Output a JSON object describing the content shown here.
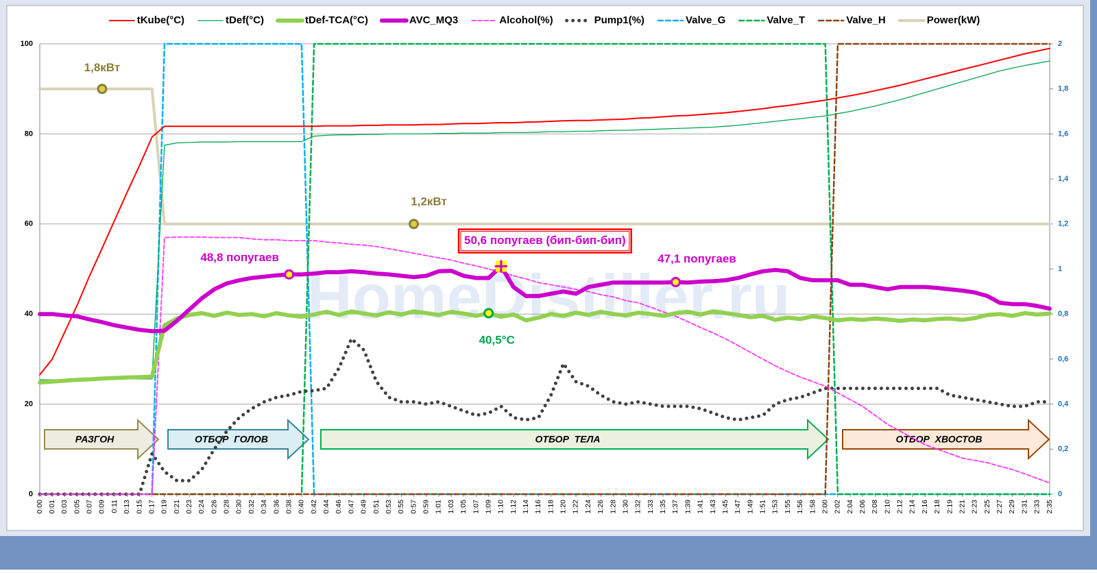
{
  "chart_data": {
    "type": "line",
    "watermark": "HomeDistiller.ru",
    "categories": [
      "0:00",
      "0:01",
      "0:03",
      "0:05",
      "0:07",
      "0:09",
      "0:11",
      "0:13",
      "0:15",
      "0:17",
      "0:19",
      "0:21",
      "0:23",
      "0:24",
      "0:26",
      "0:28",
      "0:30",
      "0:32",
      "0:34",
      "0:36",
      "0:38",
      "0:40",
      "0:42",
      "0:44",
      "0:46",
      "0:47",
      "0:49",
      "0:51",
      "0:53",
      "0:55",
      "0:57",
      "0:59",
      "1:01",
      "1:03",
      "1:05",
      "1:07",
      "1:09",
      "1:10",
      "1:12",
      "1:14",
      "1:16",
      "1:18",
      "1:20",
      "1:22",
      "1:24",
      "1:26",
      "1:28",
      "1:30",
      "1:32",
      "1:33",
      "1:35",
      "1:37",
      "1:39",
      "1:41",
      "1:43",
      "1:45",
      "1:47",
      "1:49",
      "1:51",
      "1:53",
      "1:55",
      "1:56",
      "1:58",
      "2:00",
      "2:02",
      "2:04",
      "2:06",
      "2:08",
      "2:10",
      "2:12",
      "2:14",
      "2:16",
      "2:18",
      "2:19",
      "2:21",
      "2:23",
      "2:25",
      "2:27",
      "2:29",
      "2:31",
      "2:33",
      "2:35"
    ],
    "ylim": [
      0,
      100
    ],
    "yticks": [
      0,
      20,
      40,
      60,
      80,
      100
    ],
    "y2lim": [
      0,
      2
    ],
    "y2ticks": [
      0,
      {
        "value": 0.2,
        "label": "0,2"
      },
      {
        "value": 0.4,
        "label": "0,4"
      },
      {
        "value": 0.6,
        "label": "0,6"
      },
      {
        "value": 0.8,
        "label": "0,8"
      },
      1,
      {
        "value": 1.2,
        "label": "1,2"
      },
      {
        "value": 1.4,
        "label": "1,4"
      },
      {
        "value": 1.6,
        "label": "1,6"
      },
      {
        "value": 1.8,
        "label": "1,8"
      },
      2
    ],
    "grid": true,
    "legend": "top",
    "series": [
      {
        "name": "tKube(°C)",
        "color": "#ff0000",
        "width": 2,
        "values": [
          26.5,
          30,
          36,
          42,
          48.5,
          54.6,
          60.8,
          67,
          73,
          79.3,
          81.7,
          81.7,
          81.7,
          81.7,
          81.7,
          81.7,
          81.7,
          81.7,
          81.7,
          81.7,
          81.7,
          81.7,
          81.7,
          81.8,
          81.8,
          81.8,
          81.9,
          81.9,
          82,
          82,
          82,
          82.1,
          82.1,
          82.2,
          82.3,
          82.3,
          82.4,
          82.5,
          82.5,
          82.6,
          82.7,
          82.8,
          82.9,
          83,
          83,
          83.1,
          83.2,
          83.3,
          83.5,
          83.6,
          83.8,
          84,
          84.1,
          84.3,
          84.5,
          84.7,
          85,
          85.3,
          85.6,
          86,
          86.3,
          86.7,
          87.1,
          87.5,
          88,
          88.5,
          89,
          89.6,
          90.2,
          90.8,
          91.5,
          92.2,
          92.9,
          93.6,
          94.3,
          95,
          95.7,
          96.4,
          97.1,
          97.8,
          98.4,
          99
        ]
      },
      {
        "name": "tDef(°C)",
        "color": "#00a550",
        "width": 1.3,
        "values": [
          25.4,
          25.4,
          25.4,
          25.4,
          25.5,
          25.5,
          25.5,
          25.6,
          25.6,
          25.6,
          77.5,
          78,
          78.1,
          78.2,
          78.2,
          78.2,
          78.3,
          78.3,
          78.3,
          78.3,
          78.3,
          78.3,
          79.5,
          79.7,
          79.8,
          79.8,
          79.9,
          79.9,
          80,
          80,
          80,
          80,
          80.1,
          80.1,
          80.2,
          80.2,
          80.2,
          80.3,
          80.3,
          80.3,
          80.4,
          80.5,
          80.5,
          80.6,
          80.6,
          80.7,
          80.8,
          80.8,
          80.9,
          81,
          81.1,
          81.2,
          81.3,
          81.4,
          81.5,
          81.7,
          81.9,
          82.2,
          82.5,
          82.8,
          83.1,
          83.4,
          83.7,
          84,
          84.5,
          85,
          85.6,
          86.2,
          86.9,
          87.6,
          88.4,
          89.2,
          90,
          90.8,
          91.6,
          92.4,
          93.2,
          94,
          94.6,
          95.2,
          95.7,
          96.2
        ]
      },
      {
        "name": "tDef-TCA(°C)",
        "color": "#92d050",
        "width": 6,
        "values": [
          24.8,
          25,
          25.2,
          25.4,
          25.5,
          25.7,
          25.8,
          25.9,
          26,
          26.1,
          37.5,
          39,
          39.8,
          40.2,
          39.6,
          40.3,
          39.8,
          40,
          39.5,
          40.2,
          39.7,
          39.4,
          39.9,
          40.5,
          39.8,
          40.6,
          40.1,
          39.7,
          40.4,
          39.9,
          40.6,
          40.2,
          39.8,
          40.5,
          40.1,
          39.6,
          40.2,
          39.4,
          39.9,
          38.6,
          39.2,
          40,
          39.6,
          40.3,
          39.8,
          40.5,
          40,
          39.7,
          40.3,
          40,
          39.6,
          40.2,
          40.5,
          39.9,
          40.6,
          40.2,
          39.8,
          39.3,
          39.6,
          38.7,
          39.2,
          38.9,
          39.5,
          39.1,
          38.6,
          38.9,
          38.7,
          39,
          38.8,
          38.5,
          38.8,
          38.6,
          38.9,
          39,
          38.7,
          39.1,
          39.8,
          40,
          39.6,
          40.2,
          39.9,
          40.1
        ]
      },
      {
        "name": "AVC_MQ3",
        "color": "#cc00cc",
        "width": 6,
        "values": [
          40,
          40,
          39.7,
          39.5,
          38.8,
          38.2,
          37.5,
          37,
          36.5,
          36.2,
          36.3,
          38.5,
          41,
          43.5,
          45.5,
          46.8,
          47.5,
          48,
          48.3,
          48.6,
          48.8,
          48.8,
          49,
          49.3,
          49.3,
          49.5,
          49.3,
          49,
          48.8,
          48.5,
          48.2,
          48.5,
          49.5,
          49.6,
          48.5,
          48,
          48,
          50.6,
          46,
          44,
          44,
          44.5,
          45,
          44.5,
          46,
          46.5,
          47,
          47,
          47,
          47,
          47,
          47.1,
          47,
          47.2,
          47.3,
          47.5,
          48,
          48.8,
          49.5,
          49.8,
          49.5,
          48,
          47.5,
          47.5,
          47.5,
          46.5,
          46.5,
          46,
          45.5,
          46,
          46,
          46,
          45.8,
          45.5,
          45.2,
          44.8,
          44,
          42.5,
          42.2,
          42.2,
          41.8,
          41.2
        ]
      },
      {
        "name": "Alcohol(%)",
        "color": "#ff33ff",
        "width": 1.8,
        "dash": "6 3",
        "values": [
          0,
          0,
          0,
          0,
          0,
          0,
          0,
          0,
          0,
          0,
          57,
          57.1,
          57.1,
          57.1,
          57,
          57,
          57,
          56.7,
          56.5,
          56.5,
          56.3,
          56.3,
          56.3,
          56,
          55.8,
          55.5,
          55.3,
          55,
          54.5,
          54,
          53.5,
          53,
          52.5,
          52,
          51.3,
          50.7,
          50,
          49.3,
          48.5,
          47.8,
          47,
          46.5,
          46,
          45.5,
          45,
          44.3,
          43.8,
          43,
          42.5,
          41.5,
          40.5,
          39.5,
          38.3,
          37,
          35.8,
          34.5,
          33,
          31.5,
          30,
          28.5,
          27.2,
          26,
          25,
          24,
          22.5,
          21,
          19.5,
          17.5,
          15.5,
          14,
          12.5,
          11,
          10,
          9,
          8,
          7.5,
          7,
          6.2,
          5.5,
          4.5,
          3.5,
          2.5
        ]
      },
      {
        "name": "Pump1(%)",
        "color": "#404040",
        "width": 5,
        "dash": "0 9",
        "values": [
          0,
          0,
          0,
          0,
          0,
          0,
          0,
          0,
          0,
          9,
          5,
          3,
          3,
          5.5,
          10,
          14,
          17,
          19,
          20.5,
          21.5,
          22,
          22.8,
          23,
          23.5,
          28,
          34.5,
          32,
          25,
          21.5,
          20.5,
          20.5,
          20,
          20.5,
          19.5,
          18.5,
          17.5,
          18,
          19.5,
          17,
          16.5,
          17,
          22,
          29,
          25,
          24,
          22,
          20.5,
          20,
          20.5,
          20,
          19.5,
          19.5,
          19.5,
          19,
          18,
          17,
          16.5,
          17,
          17.5,
          20,
          21,
          21.5,
          22.5,
          23.5,
          23.5,
          23.5,
          23.5,
          23.5,
          23.5,
          23.5,
          23.5,
          23.5,
          23.5,
          22,
          21.5,
          21,
          20.5,
          20,
          19.5,
          19.5,
          20.5,
          20.5
        ]
      },
      {
        "name": "Valve_G",
        "color": "#00b0f0",
        "width": 2.5,
        "dash": "7 4",
        "values": [
          0,
          0,
          0,
          0,
          0,
          0,
          0,
          0,
          0,
          0,
          100,
          100,
          100,
          100,
          100,
          100,
          100,
          100,
          100,
          100,
          100,
          100,
          0,
          0,
          0,
          0,
          0,
          0,
          0,
          0,
          0,
          0,
          0,
          0,
          0,
          0,
          0,
          0,
          0,
          0,
          0,
          0,
          0,
          0,
          0,
          0,
          0,
          0,
          0,
          0,
          0,
          0,
          0,
          0,
          0,
          0,
          0,
          0,
          0,
          0,
          0,
          0,
          0,
          0,
          0,
          0,
          0,
          0,
          0,
          0,
          0,
          0,
          0,
          0,
          0,
          0,
          0,
          0,
          0,
          0,
          0,
          0
        ]
      },
      {
        "name": "Valve_T",
        "color": "#00b050",
        "width": 2.5,
        "dash": "7 4",
        "values": [
          0,
          0,
          0,
          0,
          0,
          0,
          0,
          0,
          0,
          0,
          0,
          0,
          0,
          0,
          0,
          0,
          0,
          0,
          0,
          0,
          0,
          0,
          100,
          100,
          100,
          100,
          100,
          100,
          100,
          100,
          100,
          100,
          100,
          100,
          100,
          100,
          100,
          100,
          100,
          100,
          100,
          100,
          100,
          100,
          100,
          100,
          100,
          100,
          100,
          100,
          100,
          100,
          100,
          100,
          100,
          100,
          100,
          100,
          100,
          100,
          100,
          100,
          100,
          100,
          0,
          0,
          0,
          0,
          0,
          0,
          0,
          0,
          0,
          0,
          0,
          0,
          0,
          0,
          0,
          0,
          0,
          0
        ]
      },
      {
        "name": "Valve_H",
        "color": "#8b4513",
        "width": 2.5,
        "dash": "7 4",
        "values": [
          0,
          0,
          0,
          0,
          0,
          0,
          0,
          0,
          0,
          0,
          0,
          0,
          0,
          0,
          0,
          0,
          0,
          0,
          0,
          0,
          0,
          0,
          0,
          0,
          0,
          0,
          0,
          0,
          0,
          0,
          0,
          0,
          0,
          0,
          0,
          0,
          0,
          0,
          0,
          0,
          0,
          0,
          0,
          0,
          0,
          0,
          0,
          0,
          0,
          0,
          0,
          0,
          0,
          0,
          0,
          0,
          0,
          0,
          0,
          0,
          0,
          0,
          0,
          0,
          100,
          100,
          100,
          100,
          100,
          100,
          100,
          100,
          100,
          100,
          100,
          100,
          100,
          100,
          100,
          100,
          100,
          100
        ]
      },
      {
        "name": "Power(kW)",
        "color": "#d8d2b8",
        "width": 4,
        "axis": "y2",
        "values": [
          1.8,
          1.8,
          1.8,
          1.8,
          1.8,
          1.8,
          1.8,
          1.8,
          1.8,
          1.8,
          1.2,
          1.2,
          1.2,
          1.2,
          1.2,
          1.2,
          1.2,
          1.2,
          1.2,
          1.2,
          1.2,
          1.2,
          1.2,
          1.2,
          1.2,
          1.2,
          1.2,
          1.2,
          1.2,
          1.2,
          1.2,
          1.2,
          1.2,
          1.2,
          1.2,
          1.2,
          1.2,
          1.2,
          1.2,
          1.2,
          1.2,
          1.2,
          1.2,
          1.2,
          1.2,
          1.2,
          1.2,
          1.2,
          1.2,
          1.2,
          1.2,
          1.2,
          1.2,
          1.2,
          1.2,
          1.2,
          1.2,
          1.2,
          1.2,
          1.2,
          1.2,
          1.2,
          1.2,
          1.2,
          1.2,
          1.2,
          1.2,
          1.2,
          1.2,
          1.2,
          1.2,
          1.2,
          1.2,
          1.2,
          1.2,
          1.2,
          1.2,
          1.2,
          1.2,
          1.2,
          1.2,
          1.2
        ]
      }
    ],
    "annotations": [
      "1,8кВт",
      "1,2кВт",
      "50,6 попугаев (бип-бип-бип)",
      "48,8 попугаев",
      "47,1 попугаев",
      "40,5°C"
    ],
    "stages": [
      "РАЗГОН",
      "ОТБОР  ГОЛОВ",
      "ОТБОР  ТЕЛА",
      "ОТБОР  ХВОСТОВ"
    ]
  }
}
